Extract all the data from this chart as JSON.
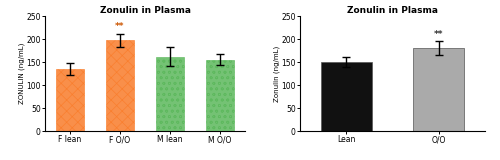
{
  "left_chart": {
    "title": "Zonulin in Plasma",
    "ylabel": "ZONULIN (ng/mL)",
    "categories": [
      "F lean",
      "F O/O",
      "M lean",
      "M O/O"
    ],
    "values": [
      135,
      197,
      162,
      155
    ],
    "errors": [
      12,
      15,
      20,
      12
    ],
    "bar_colors": [
      "#F97C2A",
      "#F97C2A",
      "#5CB85C",
      "#5CB85C"
    ],
    "hatch": [
      "xxx",
      "xxx",
      "ooo",
      "ooo"
    ],
    "hatch_edgecolors": [
      "#F97C2A",
      "#F97C2A",
      "#5CB85C",
      "#5CB85C"
    ],
    "ylim": [
      0,
      250
    ],
    "yticks": [
      0,
      50,
      100,
      150,
      200,
      250
    ],
    "sig_bar_index": 1,
    "sig_text": "**",
    "sig_color": "#CC5500"
  },
  "right_chart": {
    "title": "Zonulin in Plasma",
    "ylabel": "Zonulin (ng/mL)",
    "categories": [
      "Lean",
      "O/O"
    ],
    "values": [
      150,
      180
    ],
    "errors": [
      10,
      15
    ],
    "bar_colors": [
      "#111111",
      "#AAAAAA"
    ],
    "ylim": [
      0,
      250
    ],
    "yticks": [
      0,
      50,
      100,
      150,
      200,
      250
    ],
    "sig_bar_index": 1,
    "sig_text": "**",
    "sig_color": "#333333"
  },
  "figsize": [
    5.0,
    1.6
  ],
  "dpi": 100
}
